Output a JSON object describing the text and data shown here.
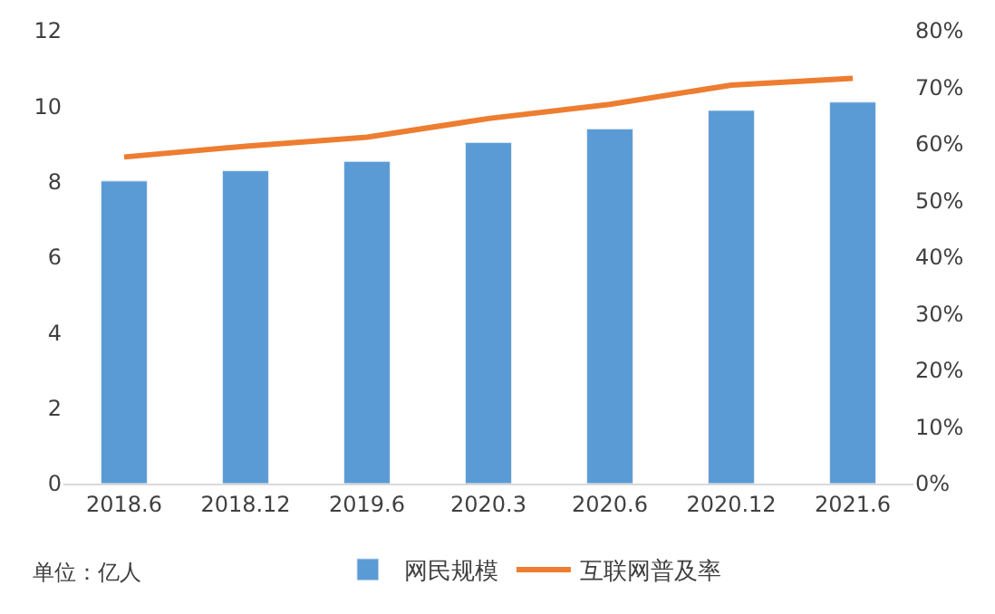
{
  "chart_data": {
    "type": "bar",
    "categories": [
      "2018.6",
      "2018.12",
      "2019.6",
      "2020.3",
      "2020.6",
      "2020.12",
      "2021.6"
    ],
    "series": [
      {
        "name": "网民规模",
        "color": "#5b9bd5",
        "values": [
          8.02,
          8.29,
          8.54,
          9.04,
          9.4,
          9.89,
          10.11
        ]
      },
      {
        "name": "互联网普及率",
        "color": "#ed7d31",
        "type": "line",
        "axis": "y2",
        "marker": "none",
        "values": [
          57.7,
          59.6,
          61.2,
          64.5,
          67.0,
          70.4,
          71.6
        ]
      }
    ],
    "ylim": [
      0,
      12
    ],
    "yticks": [
      0,
      2,
      4,
      6,
      8,
      10,
      12
    ],
    "y2lim": [
      0,
      80
    ],
    "y2ticks": [
      {
        "value": 0,
        "label": "0%"
      },
      {
        "value": 10,
        "label": "10%"
      },
      {
        "value": 20,
        "label": "20%"
      },
      {
        "value": 30,
        "label": "30%"
      },
      {
        "value": 40,
        "label": "40%"
      },
      {
        "value": 50,
        "label": "50%"
      },
      {
        "value": 60,
        "label": "60%"
      },
      {
        "value": 70,
        "label": "70%"
      },
      {
        "value": 80,
        "label": "80%"
      }
    ],
    "legend": "bottom",
    "annotations": [
      "单位：亿人"
    ]
  }
}
